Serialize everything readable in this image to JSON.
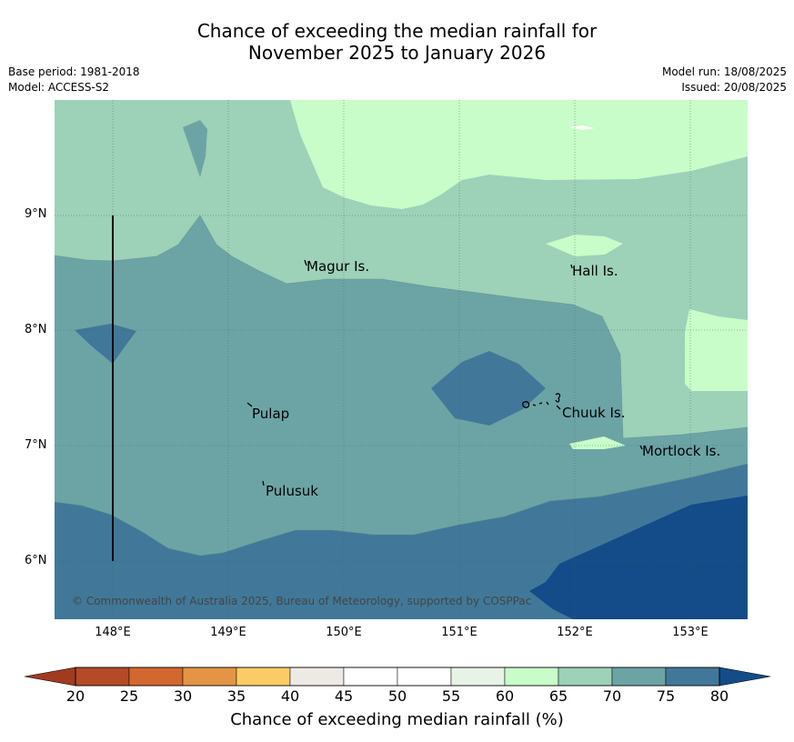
{
  "title_line1": "Chance of exceeding the median rainfall for",
  "title_line2": "November 2025 to January 2026",
  "meta_left": {
    "base_period": "Base period: 1981-2018",
    "model": "Model: ACCESS-S2"
  },
  "meta_right": {
    "model_run": "Model run: 18/08/2025",
    "issued": "Issued: 20/08/2025"
  },
  "map": {
    "lon_range": [
      147.5,
      153.5
    ],
    "lat_range": [
      5.5,
      10.0
    ],
    "x_ticks": [
      "148°E",
      "149°E",
      "150°E",
      "151°E",
      "152°E",
      "153°E"
    ],
    "y_ticks": [
      "9°N",
      "8°N",
      "7°N",
      "6°N"
    ],
    "grid": true,
    "places": [
      "Magur Is.",
      "Hall Is.",
      "Pulap",
      "Chuuk Is.",
      "Mortlock Is.",
      "Pulusuk"
    ],
    "copyright": "© Commonwealth of Australia 2025, Bureau of Meteorology, supported by COSPPac",
    "colors": {
      "60-65": "#c8fcc8",
      "65-70": "#9dd1b8",
      "70-75": "#6ca4a6",
      "75-80": "#417899",
      "80+": "#134c88"
    }
  },
  "colorbar": {
    "ticks": [
      "20",
      "25",
      "30",
      "35",
      "40",
      "45",
      "50",
      "55",
      "60",
      "65",
      "70",
      "75",
      "80"
    ],
    "colors": [
      "#b44a26",
      "#d36730",
      "#e39545",
      "#fdcb66",
      "#ede9e4",
      "#ffffff",
      "#ffffff",
      "#e7f3e6",
      "#c8fcc8",
      "#9dd1b8",
      "#6ca4a6",
      "#417899"
    ],
    "under_color": "#a13b20",
    "over_color": "#134c88",
    "label": "Chance of exceeding median rainfall (%)"
  }
}
